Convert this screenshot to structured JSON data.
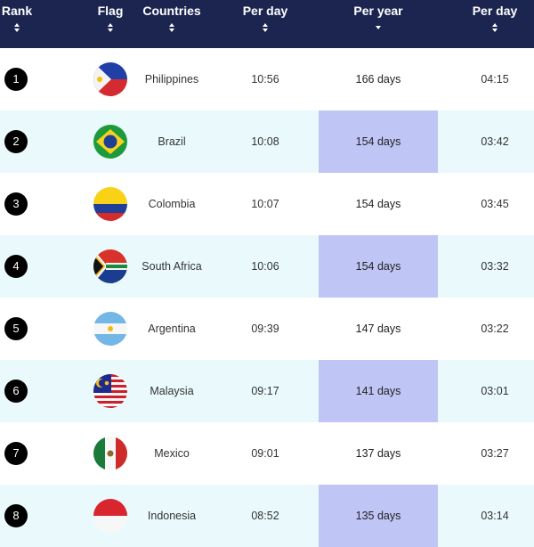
{
  "header": {
    "rank": "Rank",
    "flag": "Flag",
    "countries": "Countries",
    "per_day_1": "Per day",
    "per_year": "Per year",
    "per_day_2": "Per day"
  },
  "rows": [
    {
      "rank": "1",
      "country": "Philippines",
      "per_day_1": "10:56",
      "per_year": "166 days",
      "per_day_2": "04:15",
      "flag_icon": "philippines-flag-icon"
    },
    {
      "rank": "2",
      "country": "Brazil",
      "per_day_1": "10:08",
      "per_year": "154 days",
      "per_day_2": "03:42",
      "flag_icon": "brazil-flag-icon"
    },
    {
      "rank": "3",
      "country": "Colombia",
      "per_day_1": "10:07",
      "per_year": "154 days",
      "per_day_2": "03:45",
      "flag_icon": "colombia-flag-icon"
    },
    {
      "rank": "4",
      "country": "South Africa",
      "per_day_1": "10:06",
      "per_year": "154 days",
      "per_day_2": "03:32",
      "flag_icon": "south-africa-flag-icon"
    },
    {
      "rank": "5",
      "country": "Argentina",
      "per_day_1": "09:39",
      "per_year": "147 days",
      "per_day_2": "03:22",
      "flag_icon": "argentina-flag-icon"
    },
    {
      "rank": "6",
      "country": "Malaysia",
      "per_day_1": "09:17",
      "per_year": "141 days",
      "per_day_2": "03:01",
      "flag_icon": "malaysia-flag-icon"
    },
    {
      "rank": "7",
      "country": "Mexico",
      "per_day_1": "09:01",
      "per_year": "137 days",
      "per_day_2": "03:27",
      "flag_icon": "mexico-flag-icon"
    },
    {
      "rank": "8",
      "country": "Indonesia",
      "per_day_1": "08:52",
      "per_year": "135 days",
      "per_day_2": "03:14",
      "flag_icon": "indonesia-flag-icon"
    }
  ],
  "colors": {
    "header_bg": "#1b2550",
    "alt_row_bg": "#eafafc",
    "highlight_bg": "#bfc6f5"
  }
}
